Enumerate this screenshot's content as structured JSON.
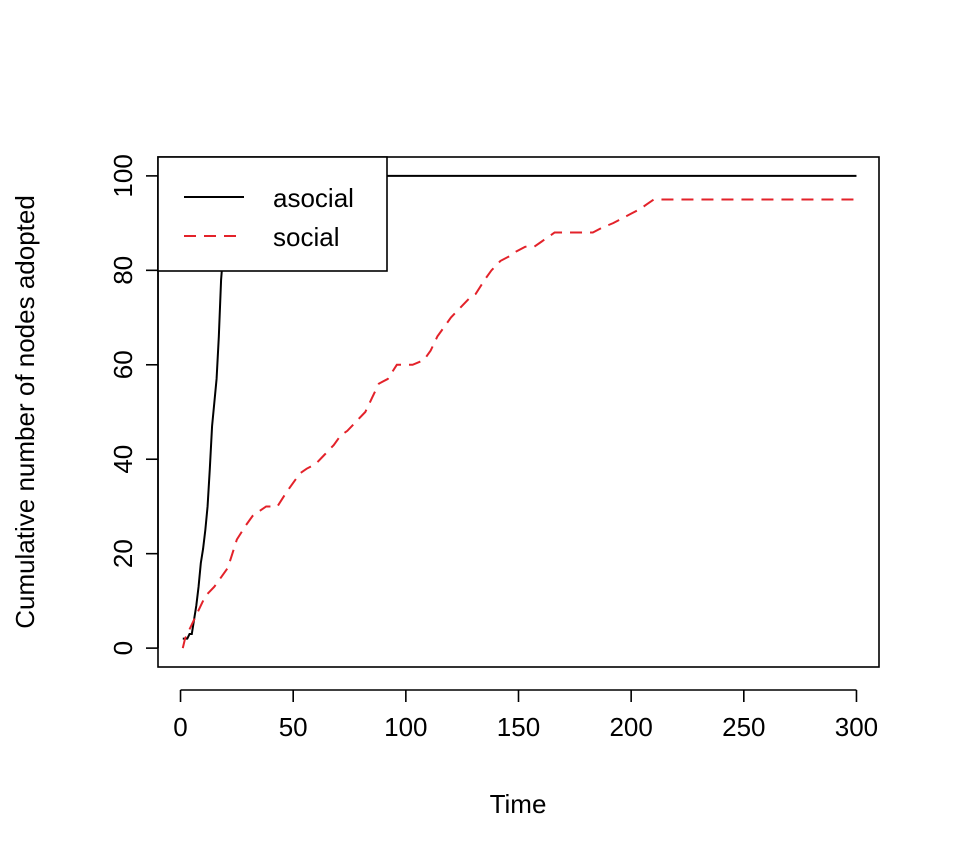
{
  "chart_data": {
    "type": "line",
    "title": "",
    "xlabel": "Time",
    "ylabel": "Cumulative number of nodes adopted",
    "xlim": [
      -10,
      310
    ],
    "ylim": [
      -4,
      104
    ],
    "xticks": [
      0,
      50,
      100,
      150,
      200,
      250,
      300
    ],
    "yticks": [
      0,
      20,
      40,
      60,
      80,
      100
    ],
    "grid": false,
    "legend_position": "top-left",
    "series": [
      {
        "name": "asocial",
        "color": "#000000",
        "line_style": "solid",
        "points": [
          [
            1,
            2
          ],
          [
            3,
            2
          ],
          [
            4,
            3
          ],
          [
            5,
            3
          ],
          [
            6,
            6
          ],
          [
            7,
            9
          ],
          [
            8,
            13
          ],
          [
            9,
            18
          ],
          [
            10,
            21
          ],
          [
            11,
            25
          ],
          [
            12,
            30
          ],
          [
            13,
            38
          ],
          [
            14,
            47
          ],
          [
            15,
            52
          ],
          [
            16,
            57
          ],
          [
            17,
            66
          ],
          [
            18,
            78
          ],
          [
            19,
            84
          ],
          [
            20,
            89
          ],
          [
            21,
            93
          ],
          [
            22,
            96
          ],
          [
            23,
            98
          ],
          [
            24,
            99
          ],
          [
            26,
            100
          ],
          [
            300,
            100
          ]
        ]
      },
      {
        "name": "social",
        "color": "#e3222a",
        "line_style": "dashed",
        "points": [
          [
            1,
            0
          ],
          [
            2,
            2
          ],
          [
            3,
            3
          ],
          [
            5,
            5
          ],
          [
            7,
            7
          ],
          [
            9,
            9
          ],
          [
            11,
            11
          ],
          [
            13,
            12
          ],
          [
            15,
            13
          ],
          [
            18,
            15
          ],
          [
            21,
            17
          ],
          [
            23,
            20
          ],
          [
            25,
            23
          ],
          [
            29,
            26
          ],
          [
            32,
            28
          ],
          [
            35,
            29
          ],
          [
            38,
            30
          ],
          [
            43,
            30
          ],
          [
            47,
            33
          ],
          [
            50,
            35
          ],
          [
            53,
            37
          ],
          [
            56,
            38
          ],
          [
            60,
            39
          ],
          [
            64,
            41
          ],
          [
            68,
            43
          ],
          [
            71,
            45
          ],
          [
            74,
            46
          ],
          [
            78,
            48
          ],
          [
            82,
            50
          ],
          [
            85,
            53
          ],
          [
            88,
            56
          ],
          [
            92,
            57
          ],
          [
            96,
            60
          ],
          [
            103,
            60
          ],
          [
            108,
            61
          ],
          [
            111,
            63
          ],
          [
            114,
            66
          ],
          [
            117,
            68
          ],
          [
            120,
            70
          ],
          [
            124,
            72
          ],
          [
            128,
            74
          ],
          [
            131,
            75
          ],
          [
            135,
            78
          ],
          [
            138,
            80
          ],
          [
            142,
            82
          ],
          [
            146,
            83
          ],
          [
            149,
            84
          ],
          [
            153,
            85
          ],
          [
            157,
            85
          ],
          [
            160,
            86
          ],
          [
            163,
            87
          ],
          [
            166,
            88
          ],
          [
            178,
            88
          ],
          [
            183,
            88
          ],
          [
            187,
            89
          ],
          [
            192,
            90
          ],
          [
            196,
            91
          ],
          [
            200,
            92
          ],
          [
            204,
            93
          ],
          [
            207,
            94
          ],
          [
            210,
            95
          ],
          [
            300,
            95
          ]
        ]
      }
    ]
  }
}
